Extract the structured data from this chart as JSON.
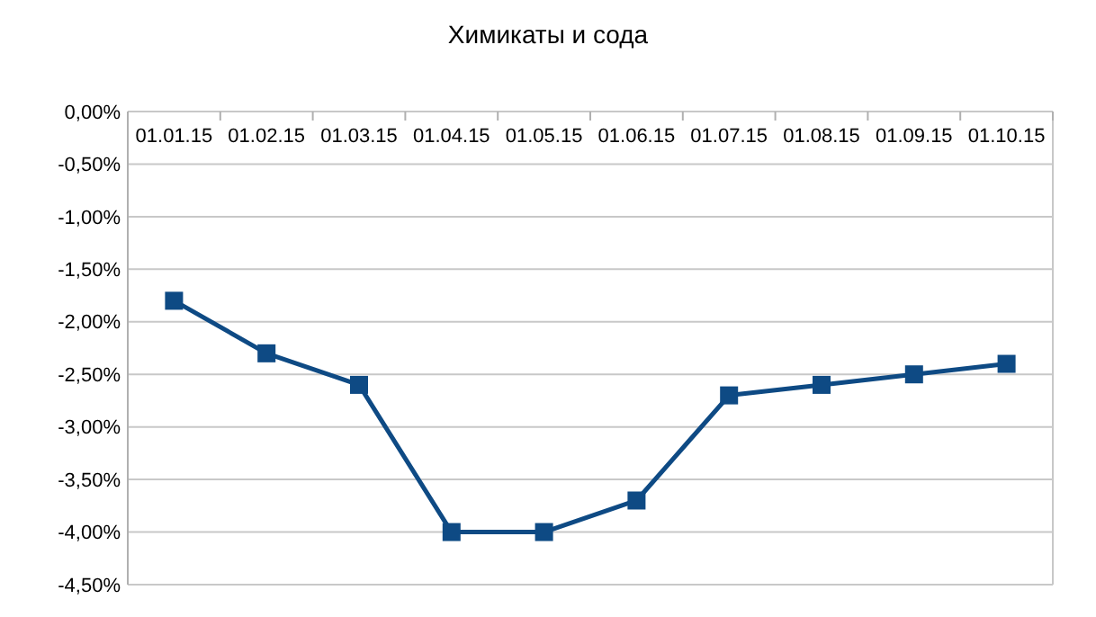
{
  "chart_data": {
    "type": "line",
    "title": "Химикаты и сода",
    "categories": [
      "01.01.15",
      "01.02.15",
      "01.03.15",
      "01.04.15",
      "01.05.15",
      "01.06.15",
      "01.07.15",
      "01.08.15",
      "01.09.15",
      "01.10.15"
    ],
    "series": [
      {
        "color": "#0e4a84",
        "values": [
          -1.8,
          -2.3,
          -2.6,
          -4.0,
          -4.0,
          -3.7,
          -2.7,
          -2.6,
          -2.5,
          -2.4
        ]
      }
    ],
    "ylim": [
      -4.5,
      0
    ],
    "yticks": [
      {
        "value": 0,
        "label": "0,00%"
      },
      {
        "value": -0.5,
        "label": "-0,50%"
      },
      {
        "value": -1,
        "label": "-1,00%"
      },
      {
        "value": -1.5,
        "label": "-1,50%"
      },
      {
        "value": -2,
        "label": "-2,00%"
      },
      {
        "value": -2.5,
        "label": "-2,50%"
      },
      {
        "value": -3,
        "label": "-3,00%"
      },
      {
        "value": -3.5,
        "label": "-3,50%"
      },
      {
        "value": -4,
        "label": "-4,00%"
      },
      {
        "value": -4.5,
        "label": "-4,50%"
      }
    ],
    "grid": "y",
    "marker": "square",
    "line_style": "solid"
  }
}
